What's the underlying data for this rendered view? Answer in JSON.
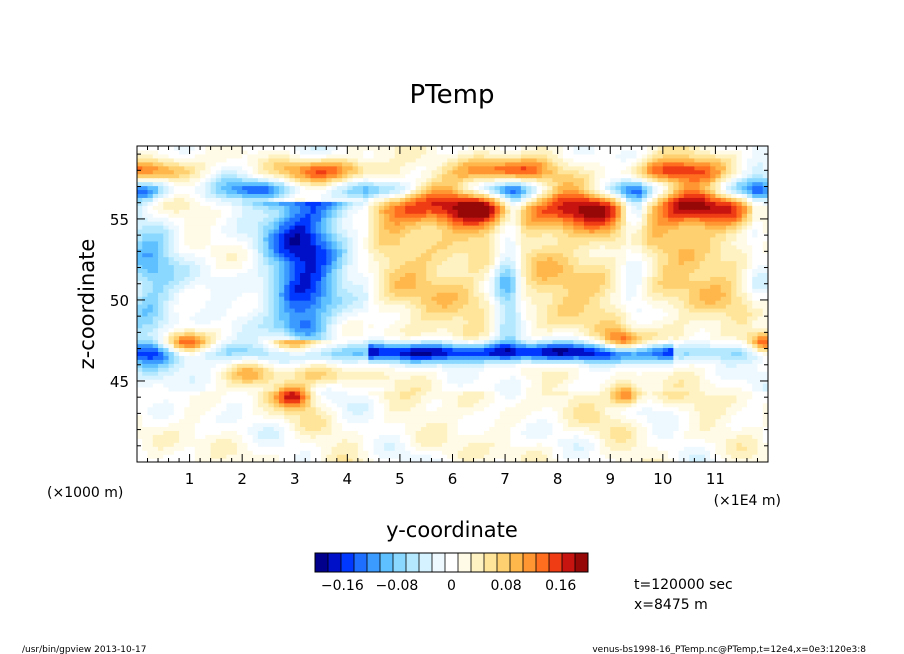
{
  "chart_data": {
    "type": "heatmap",
    "title": "PTemp",
    "xlabel": "y-coordinate",
    "ylabel": "z-coordinate",
    "x_unit_left": "(×1000 m)",
    "x_unit_right": "(×1E4 m)",
    "xlim": [
      0,
      12
    ],
    "ylim": [
      40,
      59.5
    ],
    "x_ticks": [
      1,
      2,
      3,
      4,
      5,
      6,
      7,
      8,
      9,
      10,
      11
    ],
    "x_tick_labels": [
      "1",
      "2",
      "3",
      "4",
      "5",
      "6",
      "7",
      "8",
      "9",
      "10",
      "11"
    ],
    "y_ticks": [
      45,
      50,
      55
    ],
    "y_tick_labels": [
      "45",
      "50",
      "55"
    ],
    "colorbar": {
      "min": -0.2,
      "max": 0.2,
      "tick_values": [
        -0.16,
        -0.08,
        0,
        0.08,
        0.16
      ],
      "tick_labels": [
        "−0.16",
        "−0.08",
        "0",
        "0.08",
        "0.16"
      ]
    },
    "features": {
      "warm_upper_band_z": [
        55,
        56.5
      ],
      "warm_interior_y_ranges": [
        [
          4.7,
          6.9
        ],
        [
          7.5,
          9.0
        ],
        [
          9.9,
          11.4
        ]
      ],
      "cold_plume_y": [
        2.4,
        3.9
      ],
      "cold_plume_z": [
        47.5,
        56
      ],
      "cold_layer_z": 46.8,
      "cold_layer_upper_z": 56.8,
      "warm_layer_z": 58.0
    },
    "annotations": [
      "t=120000 sec",
      "x=8475 m"
    ]
  },
  "footer": {
    "left": "/usr/bin/gpview   2013-10-17",
    "right": "venus-bs1998-16_PTemp.nc@PTemp,t=12e4,x=0e3:120e3:8"
  },
  "colors": {
    "palette": [
      "#00008c",
      "#0010c8",
      "#0038ff",
      "#1e6eff",
      "#3c9bff",
      "#5ec0ff",
      "#8ad8ff",
      "#b4e8ff",
      "#d4f2ff",
      "#eef9ff",
      "#ffffff",
      "#fffbe6",
      "#fff2c2",
      "#ffe59a",
      "#ffd070",
      "#ffb64a",
      "#ff9632",
      "#ff6e1e",
      "#f03c14",
      "#c81410",
      "#960808"
    ]
  }
}
